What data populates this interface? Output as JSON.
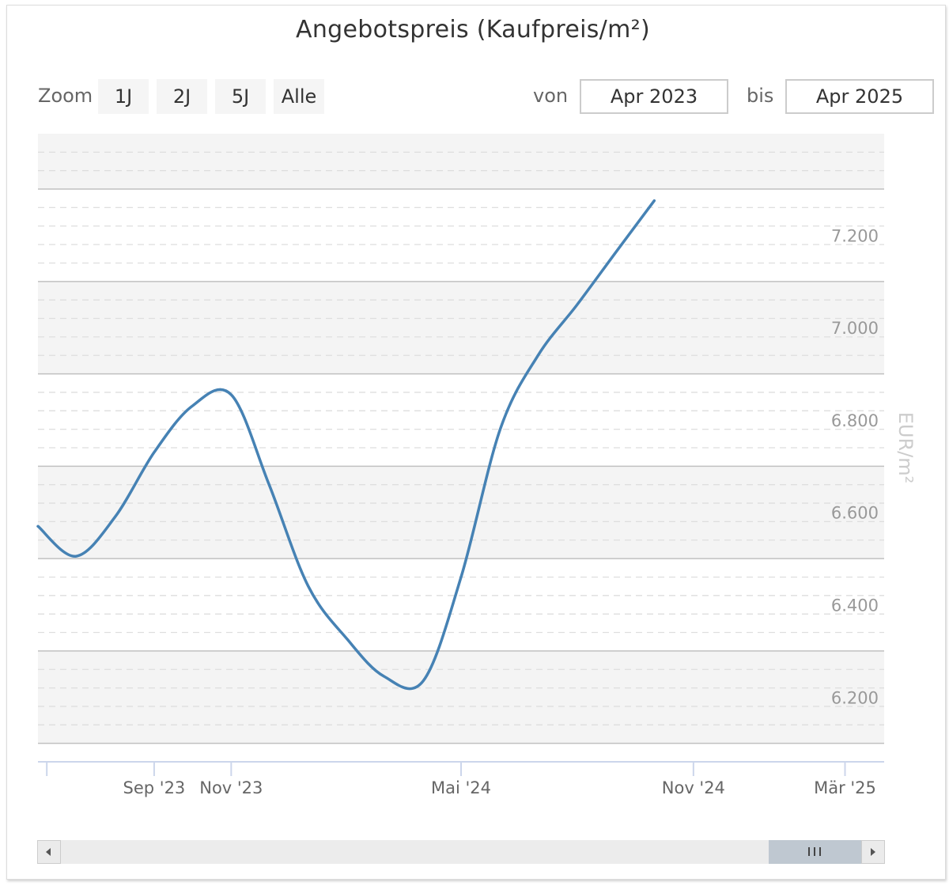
{
  "chart_data": {
    "type": "line",
    "title": "Angebotspreis (Kaufpreis/m²)",
    "ylabel": "EUR/m²",
    "ylim": [
      6060,
      7420
    ],
    "y_ticks": [
      6200,
      6400,
      6600,
      6800,
      7000,
      7200
    ],
    "y_tick_labels": [
      "6.200",
      "6.400",
      "6.600",
      "6.800",
      "7.000",
      "7.200"
    ],
    "x_range": [
      "2023-06-01",
      "2025-04-01"
    ],
    "x_ticks": [
      {
        "date": "2023-06-08",
        "label": ""
      },
      {
        "date": "2023-09-01",
        "label": "Sep '23"
      },
      {
        "date": "2023-11-01",
        "label": "Nov '23"
      },
      {
        "date": "2024-05-01",
        "label": "Mai '24"
      },
      {
        "date": "2024-11-01",
        "label": "Nov '24"
      },
      {
        "date": "2025-03-01",
        "label": "Mär '25"
      }
    ],
    "grid": true,
    "series": [
      {
        "color": "#4682b4",
        "points": [
          {
            "x": "2023-06-01",
            "y": 6570
          },
          {
            "x": "2023-07-01",
            "y": 6505
          },
          {
            "x": "2023-08-01",
            "y": 6590
          },
          {
            "x": "2023-09-01",
            "y": 6730
          },
          {
            "x": "2023-10-01",
            "y": 6830
          },
          {
            "x": "2023-11-01",
            "y": 6855
          },
          {
            "x": "2023-12-01",
            "y": 6660
          },
          {
            "x": "2024-01-01",
            "y": 6440
          },
          {
            "x": "2024-02-01",
            "y": 6325
          },
          {
            "x": "2024-03-01",
            "y": 6245
          },
          {
            "x": "2024-04-01",
            "y": 6235
          },
          {
            "x": "2024-05-01",
            "y": 6460
          },
          {
            "x": "2024-06-01",
            "y": 6780
          },
          {
            "x": "2024-07-01",
            "y": 6940
          },
          {
            "x": "2024-08-01",
            "y": 7050
          },
          {
            "x": "2024-09-01",
            "y": 7165
          },
          {
            "x": "2024-10-01",
            "y": 7275
          }
        ]
      }
    ]
  },
  "title": "Angebotspreis (Kaufpreis/m²)",
  "zoom": {
    "label": "Zoom",
    "buttons": [
      "1J",
      "2J",
      "5J",
      "Alle"
    ]
  },
  "range": {
    "from_label": "von",
    "from_value": "Apr 2023",
    "to_label": "bis",
    "to_value": "Apr 2025"
  },
  "scrollbar": {
    "position": 0.9,
    "colors": {
      "track": "#ececec",
      "thumb": "#bfc8d1"
    }
  },
  "colors": {
    "line": "#4682b4",
    "band": "#f4f4f4",
    "axis": "#ccd6eb"
  }
}
